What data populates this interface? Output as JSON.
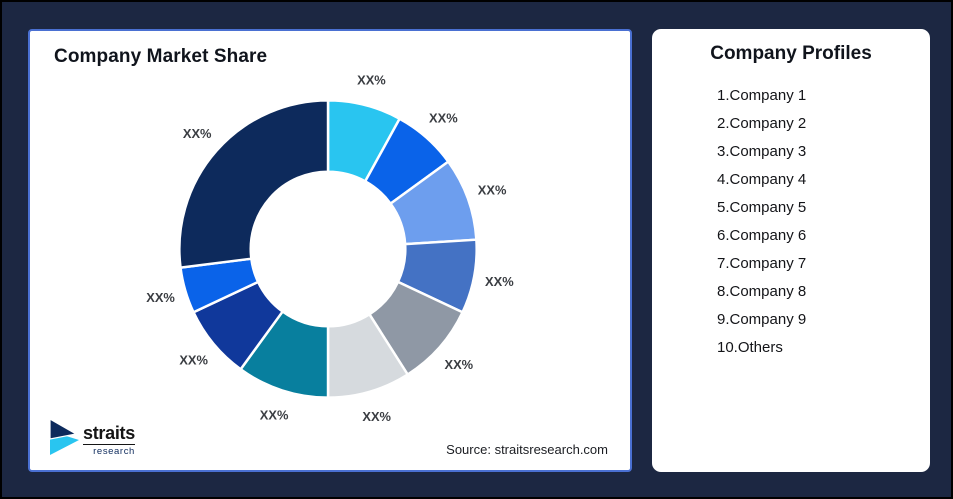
{
  "canvas": {
    "background_color": "#1c2742",
    "border_color": "#000000"
  },
  "market_share_panel": {
    "title": "Company Market Share",
    "source": "Source: straitsresearch.com",
    "accent_border_color": "#4a70d2",
    "logo": {
      "name": "straits",
      "sub": "research",
      "icon_colors": [
        "#0d2a5c",
        "#29c5f0"
      ]
    }
  },
  "chart_data": {
    "type": "pie",
    "subtype": "donut",
    "title": "Company Market Share",
    "donut_hole_ratio": 0.52,
    "start_angle_deg": 0,
    "direction": "clockwise",
    "legend_position": "none",
    "segments": [
      {
        "label": "XX%",
        "value": 8,
        "color": "#29c5f0"
      },
      {
        "label": "XX%",
        "value": 7,
        "color": "#0a63e9"
      },
      {
        "label": "XX%",
        "value": 9,
        "color": "#6d9eee"
      },
      {
        "label": "XX%",
        "value": 8,
        "color": "#4472c4"
      },
      {
        "label": "XX%",
        "value": 9,
        "color": "#8f98a5"
      },
      {
        "label": "XX%",
        "value": 9,
        "color": "#d6dade"
      },
      {
        "label": "XX%",
        "value": 10,
        "color": "#087f9e"
      },
      {
        "label": "XX%",
        "value": 8,
        "color": "#10389b"
      },
      {
        "label": "XX%",
        "value": 5,
        "color": "#0a63e9"
      },
      {
        "label": "XX%",
        "value": 27,
        "color": "#0d2a5c"
      }
    ]
  },
  "profiles_panel": {
    "title": "Company Profiles",
    "items": [
      "1.Company 1",
      "2.Company 2",
      "3.Company 3",
      "4.Company 4",
      "5.Company 5",
      "6.Company 6",
      "7.Company 7",
      "8.Company 8",
      "9.Company 9",
      "10.Others"
    ]
  }
}
